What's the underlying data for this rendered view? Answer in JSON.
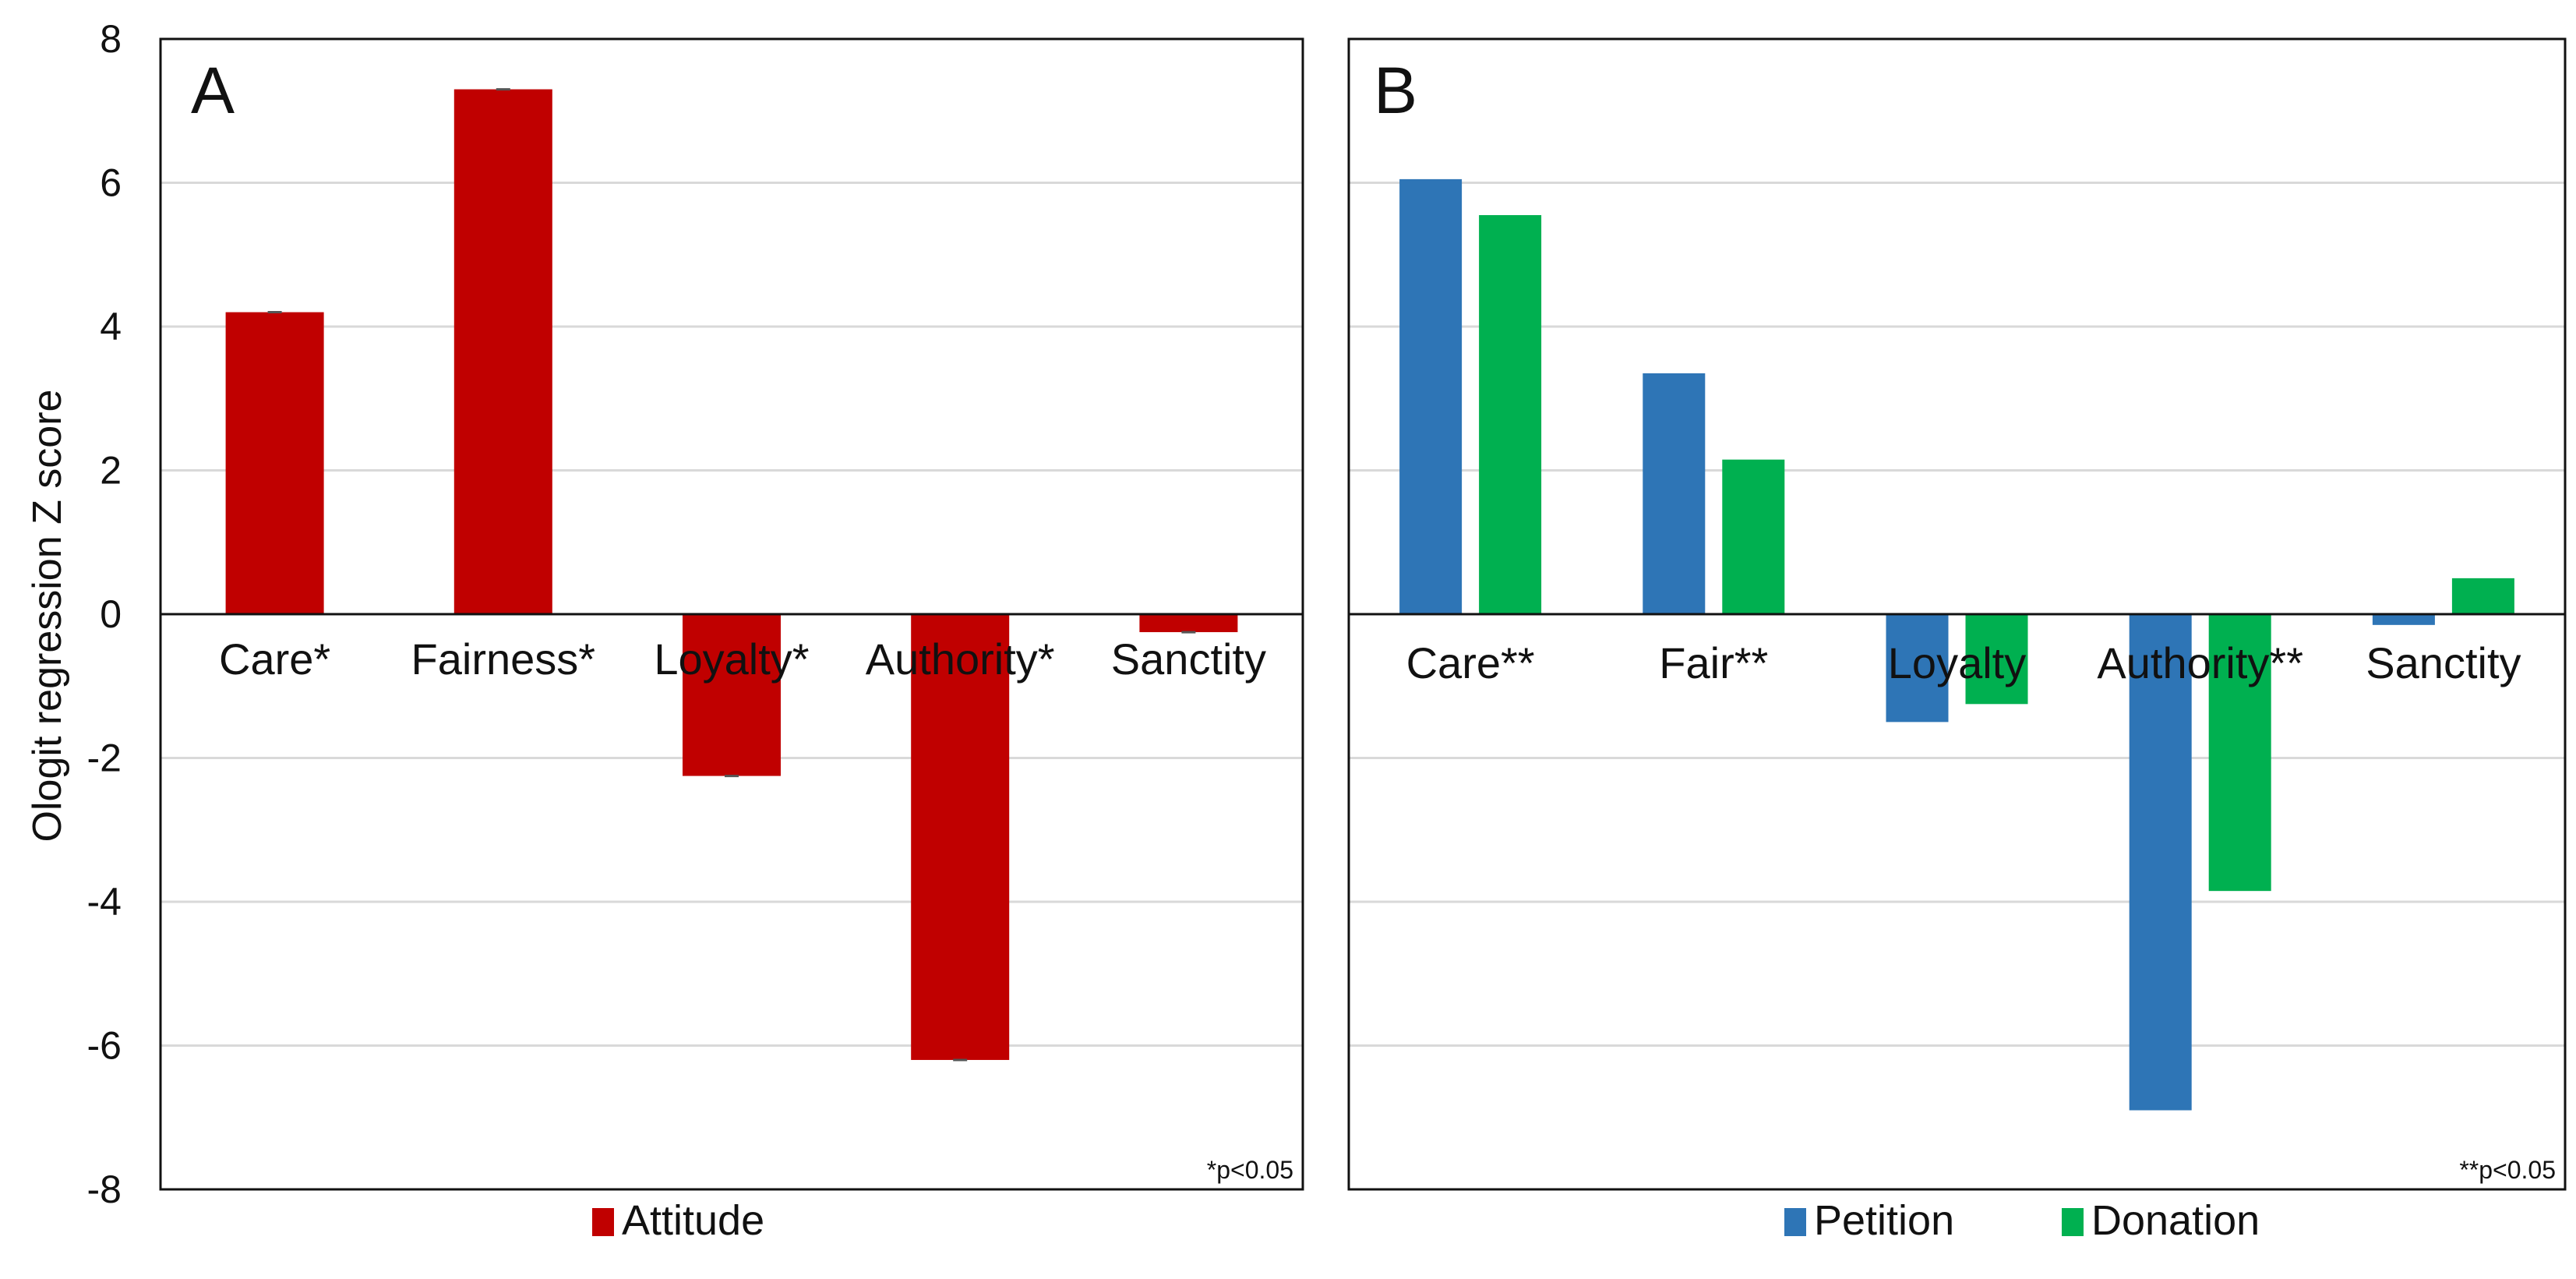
{
  "y_axis_label": "Ologit regression Z score",
  "chart_data": [
    {
      "type": "bar",
      "panel_label": "A",
      "ylabel": "Ologit regression Z score",
      "ylim": [
        -8,
        8
      ],
      "y_ticks": [
        "8",
        "6",
        "4",
        "2",
        "0",
        "-2",
        "-4",
        "-6",
        "-8"
      ],
      "grid": true,
      "categories": [
        "Care*",
        "Fairness*",
        "Loyalty*",
        "Authority*",
        "Sanctity"
      ],
      "series": [
        {
          "name": "Attitude",
          "color": "#c00000",
          "values": [
            4.2,
            7.3,
            -2.25,
            -6.2,
            -0.25
          ]
        }
      ],
      "footnote": "*p<0.05",
      "legend_position": "bottom"
    },
    {
      "type": "bar",
      "panel_label": "B",
      "ylim": [
        -8,
        8
      ],
      "grid": true,
      "categories": [
        "Care**",
        "Fair**",
        "Loyalty",
        "Authority**",
        "Sanctity"
      ],
      "series": [
        {
          "name": "Petition",
          "color": "#2e75b6",
          "values": [
            6.05,
            3.35,
            -1.5,
            -6.9,
            -0.15
          ]
        },
        {
          "name": "Donation",
          "color": "#00b050",
          "values": [
            5.55,
            2.15,
            -1.25,
            -3.85,
            0.5
          ]
        }
      ],
      "footnote": "**p<0.05",
      "legend_position": "bottom"
    }
  ]
}
